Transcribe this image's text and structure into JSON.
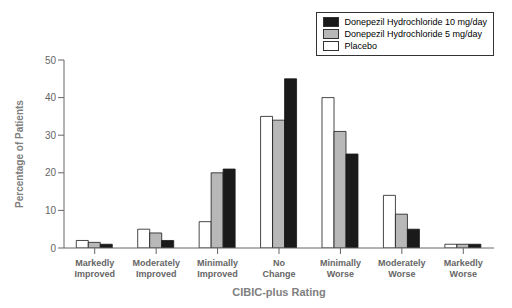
{
  "chart_data": {
    "type": "bar",
    "categories": [
      "Markedly\nImproved",
      "Moderately\nImproved",
      "Minimally\nImproved",
      "No\nChange",
      "Minimally\nWorse",
      "Moderately\nWorse",
      "Markedly\nWorse"
    ],
    "series": [
      {
        "name": "Placebo",
        "color": "#ffffff",
        "values": [
          2,
          5,
          7,
          35,
          40,
          14,
          1
        ]
      },
      {
        "name": "Donepezil Hydrochloride 5 mg/day",
        "color": "#b8b8b8",
        "values": [
          1.5,
          4,
          20,
          34,
          31,
          9,
          1
        ]
      },
      {
        "name": "Donepezil Hydrochloride 10 mg/day",
        "color": "#1a1a1a",
        "values": [
          1,
          2,
          21,
          45,
          25,
          5,
          1
        ]
      }
    ],
    "xlabel": "CIBIC-plus Rating",
    "ylabel": "Percentage of Patients",
    "ylim": [
      0,
      50
    ],
    "yticks": [
      0,
      10,
      20,
      30,
      40,
      50
    ],
    "legend": "upper right"
  }
}
